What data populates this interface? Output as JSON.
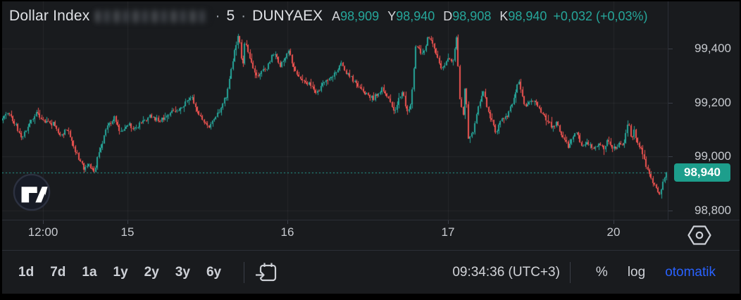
{
  "topbar": {
    "title": "Dollar Index",
    "redacted": true,
    "separator": "·",
    "interval": "5",
    "exchange": "DUNYAEX",
    "ohlc": [
      {
        "key": "A",
        "value": "98,909"
      },
      {
        "key": "Y",
        "value": "98,940"
      },
      {
        "key": "D",
        "value": "98,908"
      },
      {
        "key": "K",
        "value": "98,940"
      }
    ],
    "change": "+0,032 (+0,03%)"
  },
  "chart_data": {
    "type": "candlestick",
    "title": "Dollar Index",
    "interval_minutes": 5,
    "exchange": "DUNYAEX",
    "open": 98909,
    "high": 98940,
    "low": 98908,
    "close": 98940,
    "change": 0.032,
    "change_pct": 0.03,
    "last_price": 98940,
    "last_price_label": "98,940",
    "y_axis": {
      "ticks": [
        {
          "label": "99,400",
          "price": 99400
        },
        {
          "label": "99,200",
          "price": 99200
        },
        {
          "label": "99,000",
          "price": 99000
        },
        {
          "label": "98,800",
          "price": 98800
        }
      ],
      "visible_range": [
        98766,
        99502
      ],
      "grid": true
    },
    "x_axis": {
      "ticks": [
        {
          "label": "12:00",
          "pos": 0.0614
        },
        {
          "label": "15",
          "pos": 0.1884
        },
        {
          "label": "16",
          "pos": 0.4286
        },
        {
          "label": "17",
          "pos": 0.6698
        },
        {
          "label": "20",
          "pos": 0.9185
        }
      ],
      "grid": true
    },
    "colors": {
      "up": "#26a69a",
      "down": "#ef5350",
      "last_price_line": "#26a69a",
      "badge_bg": "#1d9e8c",
      "grid": "rgba(255,255,255,0.055)"
    },
    "price_path": [
      [
        0.0,
        99135
      ],
      [
        0.01,
        99165
      ],
      [
        0.022,
        99120
      ],
      [
        0.032,
        99070
      ],
      [
        0.042,
        99120
      ],
      [
        0.053,
        99165
      ],
      [
        0.065,
        99130
      ],
      [
        0.08,
        99120
      ],
      [
        0.09,
        99075
      ],
      [
        0.1,
        99105
      ],
      [
        0.112,
        99020
      ],
      [
        0.125,
        98955
      ],
      [
        0.132,
        98975
      ],
      [
        0.14,
        98940
      ],
      [
        0.148,
        99020
      ],
      [
        0.16,
        99110
      ],
      [
        0.171,
        99145
      ],
      [
        0.18,
        99090
      ],
      [
        0.19,
        99125
      ],
      [
        0.2,
        99100
      ],
      [
        0.212,
        99130
      ],
      [
        0.225,
        99150
      ],
      [
        0.238,
        99130
      ],
      [
        0.252,
        99160
      ],
      [
        0.268,
        99175
      ],
      [
        0.286,
        99225
      ],
      [
        0.296,
        99165
      ],
      [
        0.312,
        99105
      ],
      [
        0.324,
        99150
      ],
      [
        0.34,
        99230
      ],
      [
        0.351,
        99390
      ],
      [
        0.357,
        99455
      ],
      [
        0.363,
        99330
      ],
      [
        0.367,
        99440
      ],
      [
        0.374,
        99360
      ],
      [
        0.385,
        99300
      ],
      [
        0.392,
        99320
      ],
      [
        0.4,
        99330
      ],
      [
        0.41,
        99385
      ],
      [
        0.42,
        99340
      ],
      [
        0.432,
        99395
      ],
      [
        0.44,
        99330
      ],
      [
        0.452,
        99275
      ],
      [
        0.462,
        99270
      ],
      [
        0.475,
        99235
      ],
      [
        0.487,
        99280
      ],
      [
        0.5,
        99300
      ],
      [
        0.512,
        99345
      ],
      [
        0.522,
        99300
      ],
      [
        0.53,
        99285
      ],
      [
        0.54,
        99250
      ],
      [
        0.56,
        99215
      ],
      [
        0.572,
        99250
      ],
      [
        0.58,
        99225
      ],
      [
        0.592,
        99170
      ],
      [
        0.603,
        99245
      ],
      [
        0.61,
        99170
      ],
      [
        0.617,
        99200
      ],
      [
        0.624,
        99420
      ],
      [
        0.632,
        99370
      ],
      [
        0.643,
        99450
      ],
      [
        0.652,
        99400
      ],
      [
        0.661,
        99330
      ],
      [
        0.67,
        99355
      ],
      [
        0.68,
        99360
      ],
      [
        0.684,
        99455
      ],
      [
        0.69,
        99200
      ],
      [
        0.695,
        99150
      ],
      [
        0.698,
        99290
      ],
      [
        0.702,
        99060
      ],
      [
        0.71,
        99095
      ],
      [
        0.715,
        99160
      ],
      [
        0.725,
        99235
      ],
      [
        0.735,
        99150
      ],
      [
        0.743,
        99090
      ],
      [
        0.754,
        99140
      ],
      [
        0.762,
        99155
      ],
      [
        0.769,
        99205
      ],
      [
        0.778,
        99280
      ],
      [
        0.788,
        99180
      ],
      [
        0.794,
        99200
      ],
      [
        0.801,
        99215
      ],
      [
        0.812,
        99160
      ],
      [
        0.82,
        99140
      ],
      [
        0.828,
        99105
      ],
      [
        0.835,
        99130
      ],
      [
        0.841,
        99090
      ],
      [
        0.852,
        99038
      ],
      [
        0.858,
        99060
      ],
      [
        0.866,
        99095
      ],
      [
        0.872,
        99035
      ],
      [
        0.88,
        99050
      ],
      [
        0.89,
        99030
      ],
      [
        0.9,
        99050
      ],
      [
        0.906,
        99030
      ],
      [
        0.912,
        99062
      ],
      [
        0.92,
        99030
      ],
      [
        0.93,
        99048
      ],
      [
        0.937,
        99050
      ],
      [
        0.942,
        99135
      ],
      [
        0.947,
        99070
      ],
      [
        0.952,
        99095
      ],
      [
        0.958,
        99040
      ],
      [
        0.963,
        99020
      ],
      [
        0.97,
        98965
      ],
      [
        0.977,
        98920
      ],
      [
        0.983,
        98890
      ],
      [
        0.988,
        98856
      ],
      [
        0.992,
        98878
      ],
      [
        0.996,
        98912
      ],
      [
        1.0,
        98940
      ]
    ]
  },
  "toolbar": {
    "ranges": [
      "1d",
      "7d",
      "1a",
      "1y",
      "2y",
      "3y",
      "6y"
    ],
    "clock": "09:34:36 (UTC+3)",
    "percent_label": "%",
    "log_label": "log",
    "auto_label": "otomatik",
    "auto_color": "#2962ff"
  }
}
